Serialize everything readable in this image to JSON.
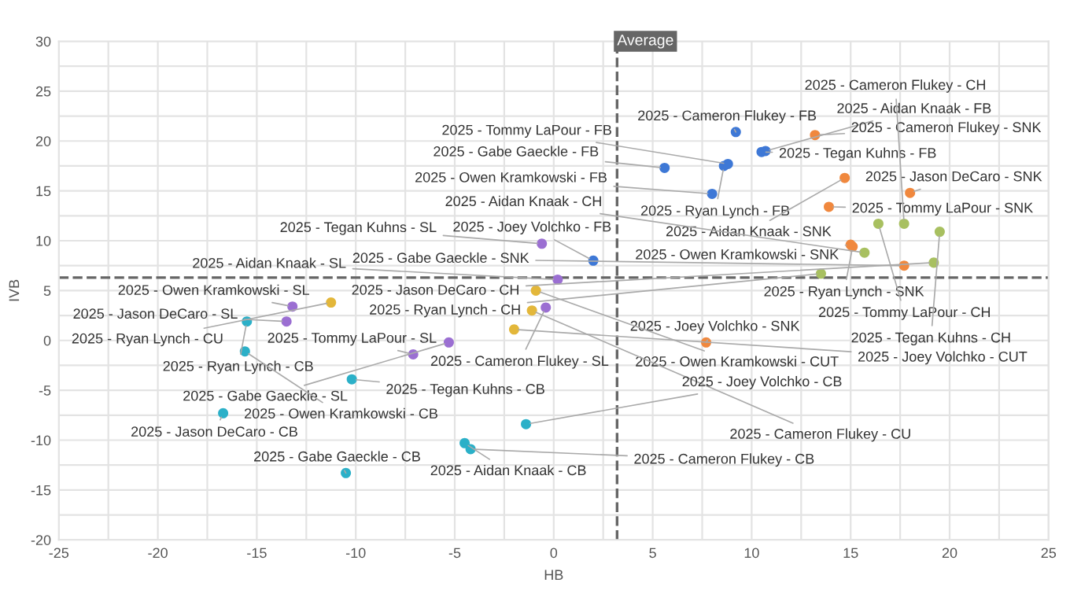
{
  "chart_data": {
    "type": "scatter",
    "xlabel": "HB",
    "ylabel": "IVB",
    "marker": "circle",
    "grid": true,
    "xlim": [
      -25,
      25
    ],
    "ylim": [
      -20,
      30
    ],
    "xticks": [
      -25,
      {
        "value": -22.5,
        "label": null
      },
      -20,
      {
        "value": -17.5,
        "label": null
      },
      -15,
      {
        "value": -12.5,
        "label": null
      },
      -10,
      {
        "value": -7.5,
        "label": null
      },
      -5,
      {
        "value": -2.5,
        "label": null
      },
      0,
      {
        "value": 2.5,
        "label": null
      },
      5,
      {
        "value": 7.5,
        "label": null
      },
      10,
      {
        "value": 12.5,
        "label": null
      },
      15,
      {
        "value": 17.5,
        "label": null
      },
      20,
      {
        "value": 22.5,
        "label": null
      },
      25
    ],
    "yticks": [
      -20,
      {
        "value": -17.5,
        "label": null
      },
      -15,
      {
        "value": -12.5,
        "label": null
      },
      -10,
      {
        "value": -7.5,
        "label": null
      },
      -5,
      {
        "value": -2.5,
        "label": null
      },
      0,
      {
        "value": 2.5,
        "label": null
      },
      5,
      {
        "value": 7.5,
        "label": null
      },
      10,
      {
        "value": 12.5,
        "label": null
      },
      15,
      {
        "value": 17.5,
        "label": null
      },
      20,
      {
        "value": 22.5,
        "label": null
      },
      25,
      {
        "value": 27.5,
        "label": null
      },
      30
    ],
    "ref_lines": [
      {
        "axis": "x",
        "value": 3.2,
        "label": "Average",
        "color": "#666666",
        "line_style": "dashed"
      },
      {
        "axis": "y",
        "value": 6.3,
        "label": null,
        "color": "#666666",
        "line_style": "dashed"
      }
    ],
    "series": [
      {
        "color": "#3e78d6",
        "x": [
          9.2,
          10.5,
          10.7,
          5.6,
          8.6,
          8.8,
          8.0,
          2.0
        ],
        "values": [
          20.9,
          18.9,
          19.0,
          17.3,
          17.5,
          17.7,
          14.7,
          8.0
        ]
      },
      {
        "color": "#f0883e",
        "x": [
          13.2,
          14.7,
          18.0,
          13.9,
          15.0,
          15.1,
          17.7,
          7.7
        ],
        "values": [
          20.6,
          16.3,
          14.8,
          13.4,
          9.6,
          9.4,
          7.5,
          -0.2
        ]
      },
      {
        "color": "#a8c060",
        "x": [
          16.4,
          17.7,
          19.5,
          15.7,
          19.2,
          13.5
        ],
        "values": [
          11.7,
          11.7,
          10.9,
          8.8,
          7.8,
          6.7
        ]
      },
      {
        "color": "#9b6fd2",
        "x": [
          -0.6,
          0.2,
          -0.4,
          -13.2,
          -13.5,
          -7.1,
          -5.3
        ],
        "values": [
          9.7,
          6.1,
          3.3,
          3.4,
          1.9,
          -1.4,
          -0.2
        ]
      },
      {
        "color": "#e3b73a",
        "x": [
          -0.9,
          -2.0,
          -11.25,
          -1.1
        ],
        "values": [
          5.0,
          1.1,
          3.8,
          3.0
        ]
      },
      {
        "color": "#2bb0c8",
        "x": [
          -15.5,
          -15.6,
          -10.2,
          -16.7,
          -10.5,
          -4.5,
          -4.2,
          -1.4
        ],
        "values": [
          1.9,
          -1.1,
          -3.9,
          -7.3,
          -13.3,
          -10.3,
          -10.9,
          -8.4
        ]
      }
    ],
    "annotations": [
      {
        "text": "2025 - Cameron Flukey - FB",
        "x": 9.2,
        "y": 20.9
      },
      {
        "text": "2025 - Tegan Kuhns - FB",
        "x": 10.5,
        "y": 18.9
      },
      {
        "text": "2025 - Aidan Knaak - FB",
        "x": 10.7,
        "y": 19.0
      },
      {
        "text": "2025 - Gabe Gaeckle - FB",
        "x": 5.6,
        "y": 17.3
      },
      {
        "text": "2025 - Ryan Lynch - FB",
        "x": 8.6,
        "y": 17.5
      },
      {
        "text": "2025 - Tommy LaPour - FB",
        "x": 8.8,
        "y": 17.7
      },
      {
        "text": "2025 - Owen Kramkowski - FB",
        "x": 8.0,
        "y": 14.7
      },
      {
        "text": "2025 - Joey Volchko - FB",
        "x": 2.0,
        "y": 8.0
      },
      {
        "text": "2025 - Cameron Flukey - SNK",
        "x": 13.2,
        "y": 20.6
      },
      {
        "text": "2025 - Aidan Knaak - SNK",
        "x": 14.7,
        "y": 16.3
      },
      {
        "text": "2025 - Jason DeCaro - SNK",
        "x": 18.0,
        "y": 14.8
      },
      {
        "text": "2025 - Tommy LaPour - SNK",
        "x": 13.9,
        "y": 13.4
      },
      {
        "text": "2025 - Owen Kramkowski - SNK",
        "x": 15.0,
        "y": 9.6
      },
      {
        "text": "2025 - Ryan Lynch - SNK",
        "x": 15.1,
        "y": 9.4
      },
      {
        "text": "2025 - Gabe Gaeckle - SNK",
        "x": 17.7,
        "y": 7.5
      },
      {
        "text": "2025 - Joey Volchko - SNK",
        "x": 7.7,
        "y": -0.2
      },
      {
        "text": "2025 - Tommy LaPour - CH",
        "x": 16.4,
        "y": 11.7
      },
      {
        "text": "2025 - Cameron Flukey - CH",
        "x": 17.7,
        "y": 11.7
      },
      {
        "text": "2025 - Tegan Kuhns - CH",
        "x": 19.5,
        "y": 10.9
      },
      {
        "text": "2025 - Aidan Knaak - CH",
        "x": 15.7,
        "y": 8.8
      },
      {
        "text": "2025 - Jason DeCaro - CH",
        "x": 19.2,
        "y": 7.8
      },
      {
        "text": "2025 - Ryan Lynch - CH",
        "x": 13.5,
        "y": 6.7
      },
      {
        "text": "2025 - Tegan Kuhns - SL",
        "x": -0.6,
        "y": 9.7
      },
      {
        "text": "2025 - Aidan Knaak - SL",
        "x": 0.2,
        "y": 6.1
      },
      {
        "text": "2025 - Cameron Flukey - SL",
        "x": -0.4,
        "y": 3.3
      },
      {
        "text": "2025 - Owen Kramkowski - SL",
        "x": -13.2,
        "y": 3.4
      },
      {
        "text": "2025 - Jason DeCaro - SL",
        "x": -13.5,
        "y": 1.9
      },
      {
        "text": "2025 - Tommy LaPour - SL",
        "x": -7.1,
        "y": -1.4
      },
      {
        "text": "2025 - Gabe Gaeckle - SL",
        "x": -5.3,
        "y": -0.2
      },
      {
        "text": "2025 - Owen Kramkowski - CUT",
        "x": -0.9,
        "y": 5.0
      },
      {
        "text": "2025 - Joey Volchko - CUT",
        "x": -2.0,
        "y": 1.1
      },
      {
        "text": "2025 - Ryan Lynch - CU",
        "x": -11.25,
        "y": 3.8
      },
      {
        "text": "2025 - Cameron Flukey - CU",
        "x": -1.1,
        "y": 3.0
      },
      {
        "text": "2025 - Ryan Lynch - CB",
        "x": -15.5,
        "y": 1.9
      },
      {
        "text": "2025 - Owen Kramkowski - CB",
        "x": -15.6,
        "y": -1.1
      },
      {
        "text": "2025 - Tegan Kuhns - CB",
        "x": -10.2,
        "y": -3.9
      },
      {
        "text": "2025 - Jason DeCaro - CB",
        "x": -16.7,
        "y": -7.3
      },
      {
        "text": "2025 - Gabe Gaeckle - CB",
        "x": -10.5,
        "y": -13.3
      },
      {
        "text": "2025 - Aidan Knaak - CB",
        "x": -4.5,
        "y": -10.3
      },
      {
        "text": "2025 - Cameron Flukey - CB",
        "x": -4.2,
        "y": -10.9
      },
      {
        "text": "2025 - Joey Volchko - CB",
        "x": -1.4,
        "y": -8.4
      }
    ]
  }
}
